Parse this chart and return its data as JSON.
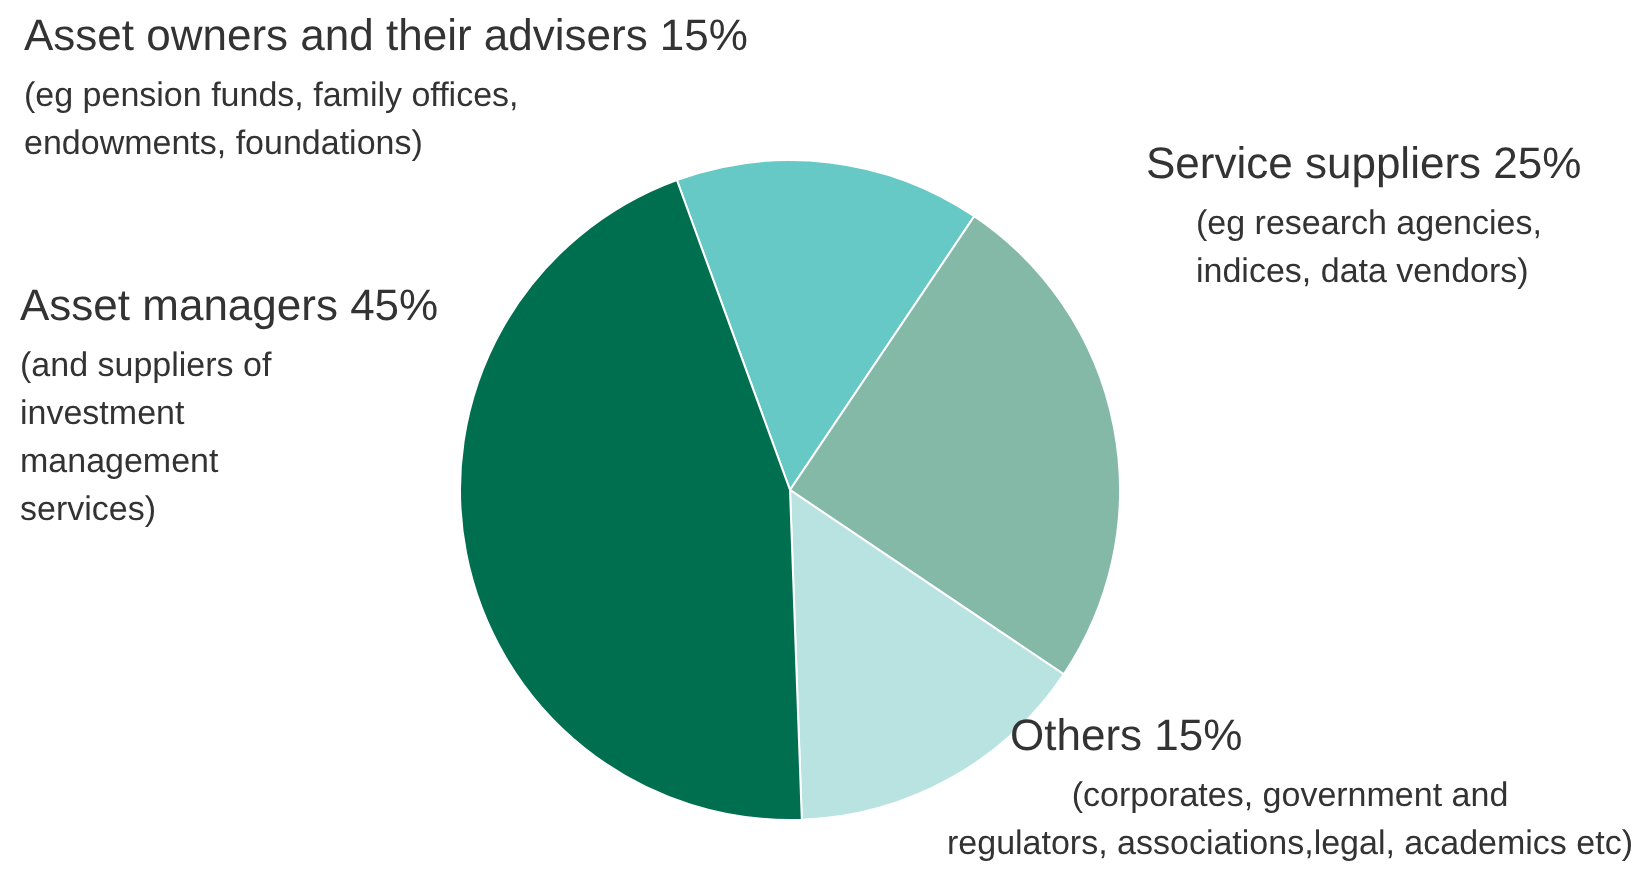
{
  "chart_data": {
    "type": "pie",
    "categories": [
      "Asset owners and their advisers",
      "Service suppliers",
      "Others",
      "Asset managers"
    ],
    "values": [
      15,
      25,
      15,
      45
    ],
    "value_labels": [
      "15%",
      "25%",
      "15%",
      "45%"
    ],
    "colors": [
      "#66c9c6",
      "#85b9a7",
      "#b9e3e1",
      "#006f4f"
    ],
    "annotations": [
      "(eg pension funds, family offices, endowments, foundations)",
      "(eg research agencies, indices, data vendors)",
      "(corporates, government and regulators, associations,legal, academics etc)",
      "(and suppliers of investment management services)"
    ]
  }
}
